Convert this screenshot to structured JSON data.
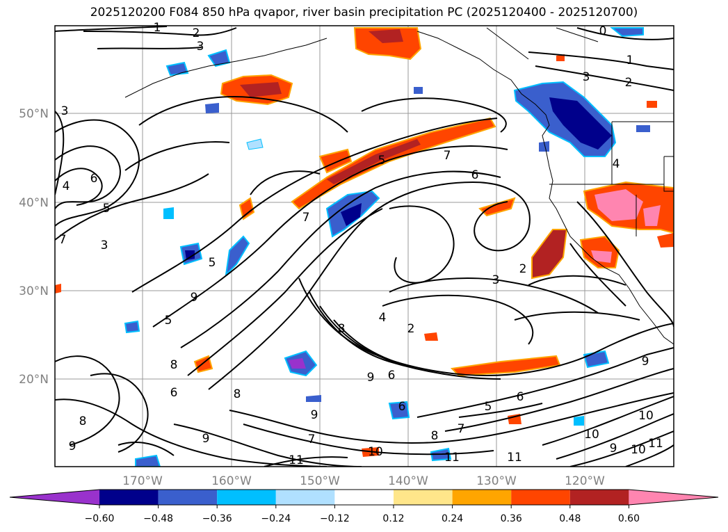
{
  "title": "2025120200 F084 850 hPa qvapor, river basin precipitation PC (2025120400 - 2025120700)",
  "latitude_labels": [
    "50°N",
    "40°N",
    "30°N",
    "20°N"
  ],
  "longitude_labels": [
    "170°W",
    "160°W",
    "150°W",
    "140°W",
    "130°W",
    "120°W"
  ],
  "colorbar": {
    "ticks": [
      "−0.60",
      "−0.48",
      "−0.36",
      "−0.24",
      "−0.12",
      "0.12",
      "0.24",
      "0.36",
      "0.48",
      "0.60"
    ],
    "colors": [
      "#9932cc",
      "#00008b",
      "#3a5fcd",
      "#00bfff",
      "#b0e0ff",
      "#ffffff",
      "#ffe68a",
      "#ffa500",
      "#ff4500",
      "#b22222",
      "#ff85b0"
    ]
  },
  "contour_labels": [
    "1",
    "2",
    "3",
    "0",
    "1",
    "2",
    "3",
    "3",
    "4",
    "6",
    "5",
    "3",
    "7",
    "5",
    "7",
    "6",
    "4",
    "5",
    "5",
    "7",
    "8",
    "4",
    "2",
    "3",
    "2",
    "8",
    "6",
    "9",
    "9",
    "8",
    "9",
    "6",
    "6",
    "5",
    "6",
    "8",
    "9",
    "7",
    "8",
    "7",
    "10",
    "11",
    "11",
    "11",
    "10",
    "10",
    "11",
    "9",
    "9",
    "10",
    "9"
  ]
}
